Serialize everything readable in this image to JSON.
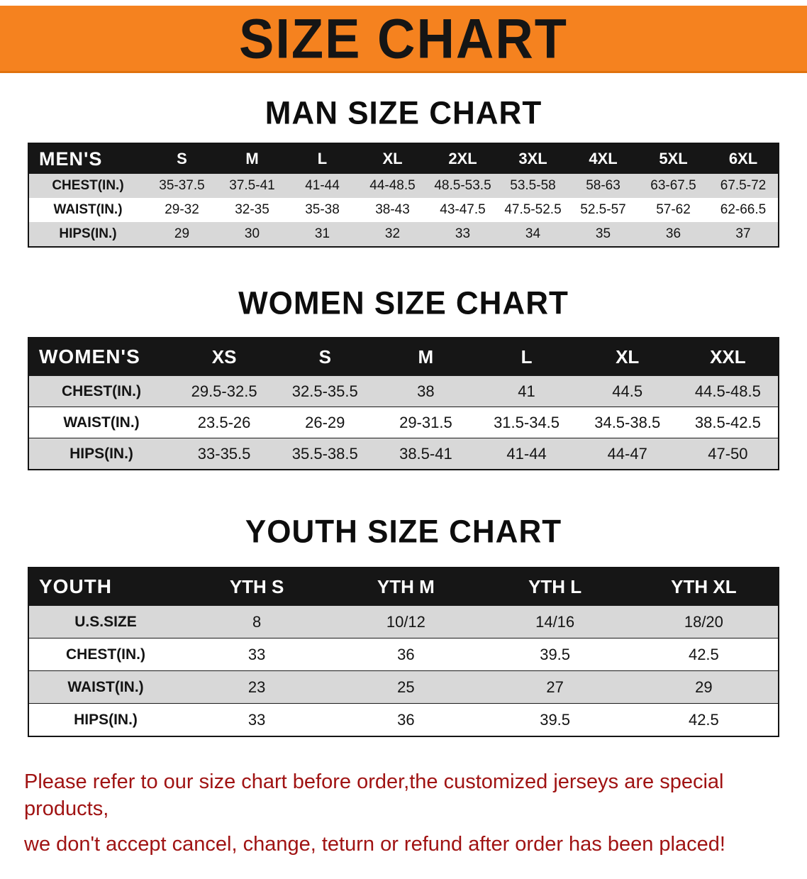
{
  "banner": {
    "title": "SIZE CHART",
    "bg_color": "#f5821f",
    "text_color": "#151515"
  },
  "sections": [
    {
      "id": "men",
      "heading": "MAN SIZE CHART",
      "table": {
        "header": [
          "MEN'S",
          "S",
          "M",
          "L",
          "XL",
          "2XL",
          "3XL",
          "4XL",
          "5XL",
          "6XL"
        ],
        "rows": [
          {
            "label": "CHEST(IN.)",
            "values": [
              "35-37.5",
              "37.5-41",
              "41-44",
              "44-48.5",
              "48.5-53.5",
              "53.5-58",
              "58-63",
              "63-67.5",
              "67.5-72"
            ]
          },
          {
            "label": "WAIST(IN.)",
            "values": [
              "29-32",
              "32-35",
              "35-38",
              "38-43",
              "43-47.5",
              "47.5-52.5",
              "52.5-57",
              "57-62",
              "62-66.5"
            ]
          },
          {
            "label": "HIPS(IN.)",
            "values": [
              "29",
              "30",
              "31",
              "32",
              "33",
              "34",
              "35",
              "36",
              "37"
            ]
          }
        ]
      }
    },
    {
      "id": "women",
      "heading": "WOMEN SIZE CHART",
      "table": {
        "header": [
          "WOMEN'S",
          "XS",
          "S",
          "M",
          "L",
          "XL",
          "XXL"
        ],
        "rows": [
          {
            "label": "CHEST(IN.)",
            "values": [
              "29.5-32.5",
              "32.5-35.5",
              "38",
              "41",
              "44.5",
              "44.5-48.5"
            ]
          },
          {
            "label": "WAIST(IN.)",
            "values": [
              "23.5-26",
              "26-29",
              "29-31.5",
              "31.5-34.5",
              "34.5-38.5",
              "38.5-42.5"
            ]
          },
          {
            "label": "HIPS(IN.)",
            "values": [
              "33-35.5",
              "35.5-38.5",
              "38.5-41",
              "41-44",
              "44-47",
              "47-50"
            ]
          }
        ]
      }
    },
    {
      "id": "youth",
      "heading": "YOUTH SIZE CHART",
      "table": {
        "header": [
          "YOUTH",
          "YTH S",
          "YTH M",
          "YTH L",
          "YTH XL"
        ],
        "rows": [
          {
            "label": "U.S.SIZE",
            "values": [
              "8",
              "10/12",
              "14/16",
              "18/20"
            ]
          },
          {
            "label": "CHEST(IN.)",
            "values": [
              "33",
              "36",
              "39.5",
              "42.5"
            ]
          },
          {
            "label": "WAIST(IN.)",
            "values": [
              "23",
              "25",
              "27",
              "29"
            ]
          },
          {
            "label": "HIPS(IN.)",
            "values": [
              "33",
              "36",
              "39.5",
              "42.5"
            ]
          }
        ]
      }
    }
  ],
  "footer": {
    "text_color": "#a01313",
    "lines": [
      "Please refer to our size chart before order,the customized jerseys are special products,",
      "we don't accept cancel, change, teturn or refund after order has been placed!"
    ]
  }
}
